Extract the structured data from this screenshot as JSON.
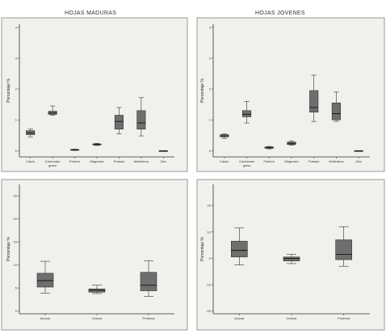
{
  "chart_data": [
    {
      "type": "boxplot",
      "title": "HOJAS MADURAS",
      "ylabel": "Porcentaje %",
      "ylim": [
        -0.2,
        4.1
      ],
      "yticks": [
        0,
        1,
        2,
        3,
        4
      ],
      "ytick_labels": [
        "0",
        "1",
        "2",
        "3",
        "4"
      ],
      "categories": [
        "Calcio",
        "Carbonato graso",
        "Fósforo",
        "Magnesio",
        "Potasio",
        "Molibdeno",
        "Zinc"
      ],
      "tick_labels": [
        [
          "Calcio"
        ],
        [
          "Carbonato",
          "graso"
        ],
        [
          "Fósforo"
        ],
        [
          "Magnesio"
        ],
        [
          "Potasio"
        ],
        [
          "Molibdeno"
        ],
        [
          "Zinc"
        ]
      ],
      "boxes": [
        {
          "min": 0.45,
          "q1": 0.52,
          "median": 0.58,
          "q3": 0.65,
          "max": 0.7
        },
        {
          "min": 1.15,
          "q1": 1.18,
          "median": 1.22,
          "q3": 1.28,
          "max": 1.45
        },
        {
          "min": 0.01,
          "q1": 0.02,
          "median": 0.03,
          "q3": 0.04,
          "max": 0.05
        },
        {
          "min": 0.17,
          "q1": 0.19,
          "median": 0.2,
          "q3": 0.22,
          "max": 0.24
        },
        {
          "min": 0.55,
          "q1": 0.7,
          "median": 0.95,
          "q3": 1.15,
          "max": 1.4
        },
        {
          "min": 0.48,
          "q1": 0.7,
          "median": 0.9,
          "q3": 1.3,
          "max": 1.72
        },
        {
          "min": 0.0,
          "q1": 0.0,
          "median": 0.0,
          "q3": 0.0,
          "max": 0.0
        }
      ]
    },
    {
      "type": "boxplot",
      "title": "HOJAS JOVENES",
      "ylabel": "Porcentaje %",
      "ylim": [
        -0.2,
        4.1
      ],
      "yticks": [
        0,
        1,
        2,
        3,
        4
      ],
      "ytick_labels": [
        "0",
        "1",
        "2",
        "3",
        "4"
      ],
      "categories": [
        "Calcio",
        "Carbonato graso",
        "Fósforo",
        "Magnesio",
        "Potasio",
        "Molibdeno",
        "Zinc"
      ],
      "tick_labels": [
        [
          "Calcio"
        ],
        [
          "Carbonato",
          "graso"
        ],
        [
          "Fósforo"
        ],
        [
          "Magnesio"
        ],
        [
          "Potasio"
        ],
        [
          "Molibdeno"
        ],
        [
          "Zinc"
        ]
      ],
      "boxes": [
        {
          "min": 0.4,
          "q1": 0.45,
          "median": 0.48,
          "q3": 0.52,
          "max": 0.55
        },
        {
          "min": 0.9,
          "q1": 1.1,
          "median": 1.18,
          "q3": 1.3,
          "max": 1.6
        },
        {
          "min": 0.06,
          "q1": 0.08,
          "median": 0.1,
          "q3": 0.12,
          "max": 0.14
        },
        {
          "min": 0.18,
          "q1": 0.2,
          "median": 0.24,
          "q3": 0.28,
          "max": 0.32
        },
        {
          "min": 0.95,
          "q1": 1.25,
          "median": 1.4,
          "q3": 1.95,
          "max": 2.45
        },
        {
          "min": 0.95,
          "q1": 1.0,
          "median": 1.2,
          "q3": 1.55,
          "max": 1.9
        },
        {
          "min": 0.0,
          "q1": 0.0,
          "median": 0.0,
          "q3": 0.0,
          "max": 0.0
        }
      ]
    },
    {
      "type": "boxplot",
      "title": "",
      "ylabel": "Porcentaje %",
      "ylim": [
        -0.6,
        27.5
      ],
      "yticks": [
        0,
        5,
        10,
        15,
        20,
        25
      ],
      "ytick_labels": [
        "0",
        "5",
        "10",
        "15",
        "20",
        "25"
      ],
      "categories": [
        "Azúcar",
        "Ceniza",
        "Proteína"
      ],
      "tick_labels": [
        [
          "Azúcar"
        ],
        [
          "Ceniza"
        ],
        [
          "Proteína"
        ]
      ],
      "boxes": [
        {
          "min": 3.9,
          "q1": 5.2,
          "median": 6.6,
          "q3": 8.2,
          "max": 10.8
        },
        {
          "min": 3.8,
          "q1": 4.1,
          "median": 4.5,
          "q3": 4.8,
          "max": 5.6
        },
        {
          "min": 3.2,
          "q1": 4.4,
          "median": 5.6,
          "q3": 8.4,
          "max": 10.9
        }
      ]
    },
    {
      "type": "boxplot",
      "title": "",
      "ylabel": "Porcentaje %",
      "ylim": [
        -21,
        28
      ],
      "yticks": [
        -20,
        -10,
        0,
        10,
        20
      ],
      "ytick_labels": [
        "-20",
        "-10",
        "0",
        "10",
        "20"
      ],
      "categories": [
        "Azúcar",
        "Ceniza",
        "Proteína"
      ],
      "tick_labels": [
        [
          "Azúcar"
        ],
        [
          "Ceniza"
        ],
        [
          "Proteína"
        ]
      ],
      "boxes": [
        {
          "min": -2.5,
          "q1": 0.5,
          "median": 3.0,
          "q3": 6.5,
          "max": 11.5
        },
        {
          "min": -2.0,
          "q1": -1.0,
          "median": 0.0,
          "q3": 0.5,
          "max": 1.5
        },
        {
          "min": -3.0,
          "q1": -0.5,
          "median": 1.5,
          "q3": 7.0,
          "max": 12.0
        }
      ]
    }
  ]
}
